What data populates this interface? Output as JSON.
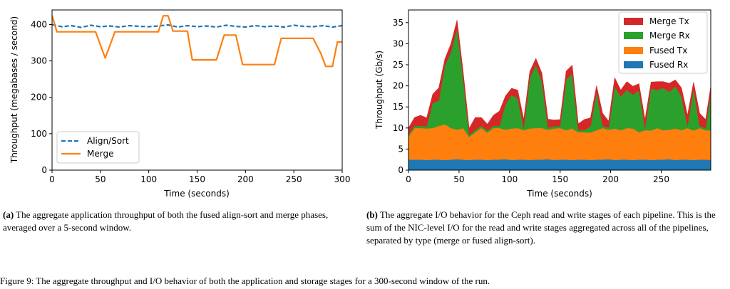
{
  "chart_data": [
    {
      "type": "line",
      "xlabel": "Time (seconds)",
      "ylabel": "Throughput (megabases / second)",
      "xlim": [
        0,
        300
      ],
      "ylim": [
        0,
        440
      ],
      "xticks": [
        0,
        50,
        100,
        150,
        200,
        250,
        300
      ],
      "yticks": [
        0,
        100,
        200,
        300,
        400
      ],
      "legend_position": "lower-left",
      "grid": false,
      "series": [
        {
          "name": "Align/Sort",
          "style": "dashed",
          "color": "#1f77b4",
          "x": [
            0,
            10,
            20,
            30,
            40,
            50,
            60,
            70,
            80,
            90,
            100,
            110,
            120,
            130,
            140,
            150,
            160,
            170,
            180,
            190,
            200,
            210,
            220,
            230,
            240,
            250,
            260,
            270,
            280,
            290,
            300
          ],
          "values": [
            400,
            394,
            397,
            392,
            398,
            394,
            396,
            393,
            397,
            395,
            394,
            396,
            399,
            393,
            397,
            394,
            396,
            393,
            398,
            395,
            393,
            397,
            394,
            396,
            393,
            398,
            395,
            394,
            397,
            393,
            397
          ]
        },
        {
          "name": "Merge",
          "style": "solid",
          "color": "#ff7f0e",
          "x": [
            0,
            5,
            10,
            45,
            55,
            65,
            110,
            115,
            120,
            125,
            135,
            140,
            145,
            170,
            178,
            190,
            197,
            230,
            237,
            270,
            278,
            283,
            290,
            295,
            300
          ],
          "values": [
            425,
            380,
            380,
            380,
            308,
            380,
            380,
            424,
            424,
            382,
            382,
            382,
            303,
            303,
            371,
            371,
            290,
            290,
            362,
            362,
            320,
            285,
            285,
            352,
            352
          ]
        }
      ]
    },
    {
      "type": "area",
      "stacked": true,
      "xlabel": "Time (seconds)",
      "ylabel": "Throughput (Gb/s)",
      "xlim": [
        0,
        299
      ],
      "ylim": [
        0,
        38
      ],
      "xticks": [
        0,
        50,
        100,
        150,
        200,
        250
      ],
      "yticks": [
        0,
        5,
        10,
        15,
        20,
        25,
        30,
        35
      ],
      "legend_position": "top-right",
      "grid": false,
      "x": [
        0,
        6,
        12,
        18,
        24,
        30,
        36,
        42,
        48,
        54,
        60,
        66,
        72,
        78,
        84,
        90,
        96,
        102,
        108,
        114,
        120,
        126,
        132,
        138,
        144,
        150,
        156,
        162,
        168,
        174,
        180,
        186,
        192,
        198,
        204,
        210,
        216,
        222,
        228,
        234,
        240,
        246,
        252,
        258,
        264,
        270,
        276,
        282,
        288,
        294,
        299
      ],
      "series": [
        {
          "name": "Fused Rx",
          "color": "#1f77b4",
          "values": [
            2.5,
            2.5,
            2.5,
            2.4,
            2.5,
            2.5,
            2.4,
            2.5,
            2.6,
            2.5,
            2.4,
            2.5,
            2.5,
            2.4,
            2.5,
            2.5,
            2.6,
            2.4,
            2.5,
            2.5,
            2.4,
            2.5,
            2.5,
            2.6,
            2.4,
            2.5,
            2.5,
            2.4,
            2.5,
            2.5,
            2.4,
            2.5,
            2.5,
            2.6,
            2.4,
            2.5,
            2.5,
            2.4,
            2.5,
            2.5,
            2.4,
            2.5,
            2.5,
            2.6,
            2.4,
            2.5,
            2.5,
            2.4,
            2.5,
            2.5,
            2.4
          ]
        },
        {
          "name": "Fused Tx",
          "color": "#ff7f0e",
          "values": [
            5.5,
            7.5,
            7.5,
            7.5,
            7.5,
            8,
            8.5,
            7.5,
            7,
            7.5,
            5.5,
            6.5,
            7.5,
            6.5,
            7.5,
            7.5,
            7,
            7.5,
            7.5,
            7,
            7.5,
            7.5,
            7.5,
            7,
            7.5,
            7.5,
            7,
            7.5,
            6.5,
            6.5,
            6.5,
            7,
            7.5,
            7,
            7.5,
            7,
            7.5,
            7.5,
            6.5,
            7,
            7,
            7.5,
            7,
            7,
            7.5,
            7,
            7.5,
            7,
            7.5,
            7,
            7
          ]
        },
        {
          "name": "Merge Rx",
          "color": "#2ca02c",
          "values": [
            0.5,
            0.5,
            0.5,
            0.5,
            6,
            6,
            14,
            18,
            24,
            12,
            0.5,
            0.5,
            0.5,
            0.5,
            0.5,
            0.5,
            6,
            8,
            7,
            0.5,
            12,
            15,
            11,
            0.5,
            0.5,
            0.5,
            12,
            13,
            0.5,
            0.5,
            1.5,
            9,
            0.5,
            0.5,
            10,
            8,
            9,
            8,
            10,
            0.5,
            10,
            9,
            10,
            9,
            10,
            8,
            0.5,
            10,
            0.5,
            0.5,
            9
          ]
        },
        {
          "name": "Merge Tx",
          "color": "#d62728",
          "values": [
            1.5,
            2,
            2.5,
            2,
            2,
            3,
            1.5,
            2,
            2,
            1.5,
            1.5,
            3,
            2,
            1.5,
            2.5,
            3.5,
            2,
            1.5,
            2,
            2,
            1.5,
            1.5,
            2,
            2,
            1.5,
            1.5,
            2,
            2,
            1.5,
            2.5,
            2,
            1.5,
            3,
            1.5,
            2,
            1.5,
            2,
            2,
            1.5,
            2,
            1.5,
            2,
            1.5,
            2,
            1.5,
            2,
            2.5,
            1.5,
            3,
            2,
            1.5
          ]
        }
      ]
    }
  ],
  "captions": {
    "a_label": "(a)",
    "a_text": " The aggregate application throughput of both the fused align-sort and merge phases, averaged over a 5-second window.",
    "b_label": "(b)",
    "b_text": " The aggregate I/O behavior for the Ceph read and write stages of each pipeline. This is the sum of the NIC-level I/O for the read and write stages aggregated across all of the pipelines, separated by type (merge or fused align-sort).",
    "figure_text": "Figure 9: The aggregate throughput and I/O behavior of both the application and storage stages for a 300-second window of the run."
  }
}
